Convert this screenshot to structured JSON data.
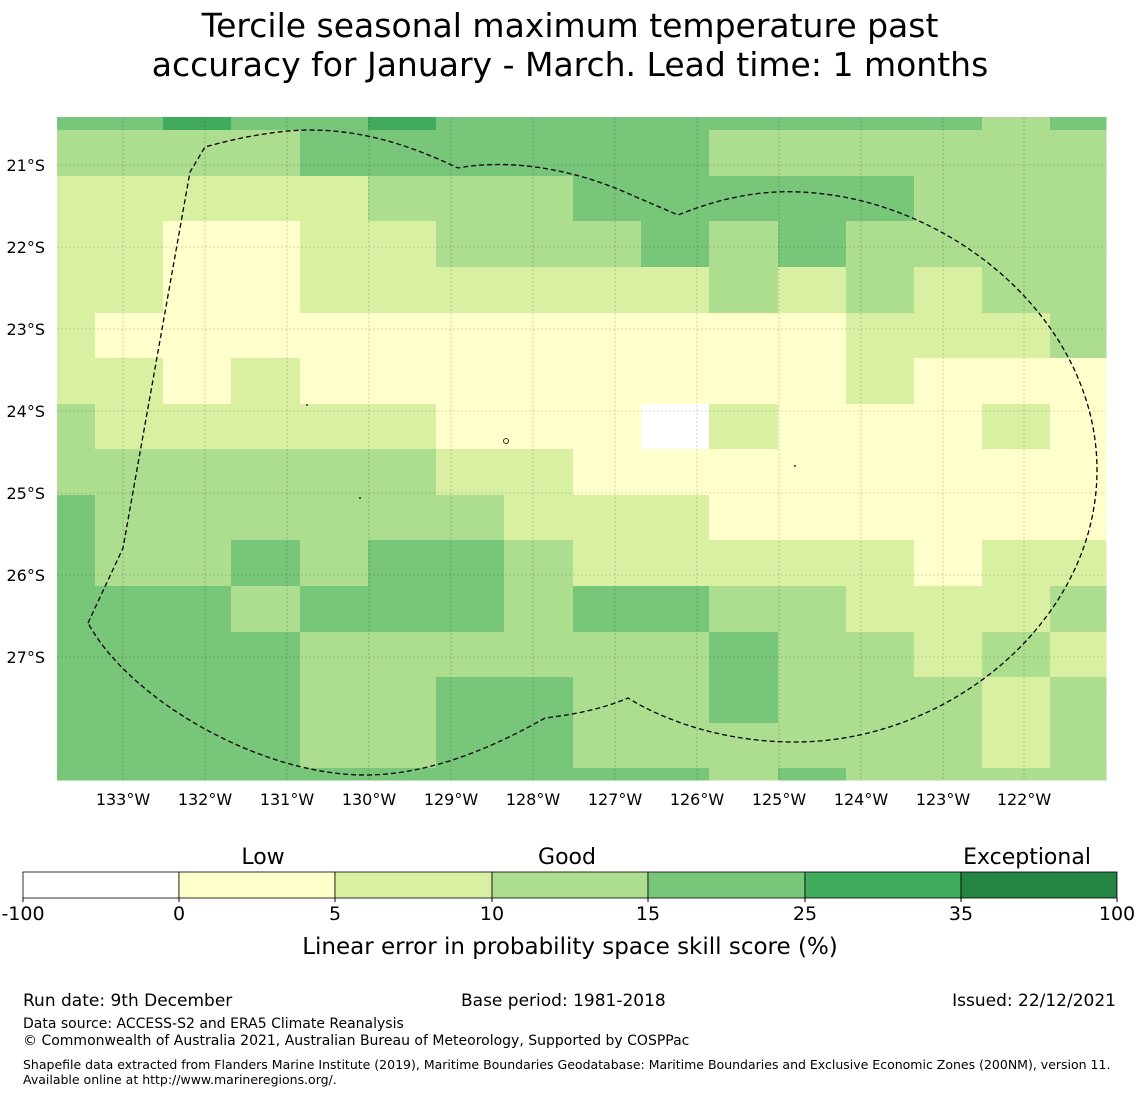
{
  "title": {
    "line1": "Tercile seasonal maximum temperature past",
    "line2": "accuracy for January - March. Lead time: 1 months"
  },
  "map": {
    "lat_labels": [
      "21°S",
      "22°S",
      "23°S",
      "24°S",
      "25°S",
      "26°S",
      "27°S"
    ],
    "lon_labels": [
      "133°W",
      "132°W",
      "131°W",
      "130°W",
      "129°W",
      "128°W",
      "127°W",
      "126°W",
      "125°W",
      "124°W",
      "123°W",
      "122°W"
    ],
    "legend_colors": [
      "#ffffff",
      "#ffffcc",
      "#d9f0a3",
      "#addd8e",
      "#78c679",
      "#41ab5d",
      "#238443"
    ],
    "grid_rows": [
      [
        4,
        4,
        5,
        4,
        4,
        5,
        4,
        4,
        4,
        4,
        4,
        4,
        4,
        4,
        3,
        4
      ],
      [
        3,
        3,
        3,
        3,
        4,
        4,
        4,
        4,
        4,
        4,
        3,
        3,
        3,
        3,
        3,
        3
      ],
      [
        2,
        2,
        2,
        2,
        2,
        3,
        3,
        3,
        4,
        4,
        4,
        4,
        4,
        3,
        3,
        3
      ],
      [
        2,
        2,
        1,
        1,
        2,
        2,
        3,
        3,
        3,
        4,
        3,
        4,
        3,
        3,
        3,
        3
      ],
      [
        2,
        2,
        1,
        1,
        2,
        2,
        2,
        2,
        2,
        2,
        3,
        2,
        3,
        2,
        3,
        3
      ],
      [
        2,
        1,
        1,
        1,
        1,
        1,
        1,
        1,
        1,
        1,
        1,
        1,
        2,
        2,
        2,
        3
      ],
      [
        2,
        2,
        1,
        2,
        1,
        1,
        1,
        1,
        1,
        1,
        1,
        1,
        2,
        1,
        1,
        1
      ],
      [
        3,
        2,
        2,
        2,
        2,
        2,
        1,
        1,
        1,
        0,
        2,
        1,
        1,
        1,
        2,
        1
      ],
      [
        3,
        3,
        3,
        3,
        3,
        3,
        2,
        2,
        1,
        1,
        1,
        1,
        1,
        1,
        1,
        1
      ],
      [
        4,
        3,
        3,
        3,
        3,
        3,
        3,
        2,
        2,
        2,
        1,
        1,
        1,
        1,
        1,
        1
      ],
      [
        4,
        3,
        3,
        4,
        3,
        4,
        4,
        3,
        2,
        2,
        2,
        2,
        2,
        1,
        2,
        2
      ],
      [
        4,
        4,
        4,
        3,
        4,
        4,
        4,
        3,
        4,
        4,
        3,
        3,
        2,
        2,
        2,
        3
      ],
      [
        4,
        4,
        4,
        4,
        3,
        3,
        3,
        3,
        3,
        3,
        4,
        3,
        3,
        2,
        3,
        2
      ],
      [
        4,
        4,
        4,
        4,
        3,
        3,
        4,
        4,
        3,
        3,
        4,
        3,
        3,
        3,
        2,
        3
      ],
      [
        4,
        4,
        4,
        4,
        3,
        3,
        4,
        4,
        3,
        3,
        3,
        3,
        3,
        3,
        2,
        3
      ],
      [
        4,
        4,
        4,
        4,
        4,
        4,
        4,
        4,
        4,
        4,
        3,
        4,
        3,
        3,
        3,
        3
      ]
    ]
  },
  "colorbar": {
    "category_labels": [
      "Low",
      "Good",
      "Exceptional"
    ],
    "ticks": [
      "-100",
      "0",
      "5",
      "10",
      "15",
      "25",
      "35",
      "100"
    ],
    "xlabel": "Linear error in probability space skill score (%)"
  },
  "footer": {
    "run_date": "Run date: 9th December",
    "base_period": "Base period: 1981-2018",
    "issued": "Issued: 22/12/2021",
    "data_source": "Data source: ACCESS-S2 and ERA5 Climate Reanalysis",
    "copyright": "© Commonwealth of Australia 2021, Australian Bureau of Meteorology, Supported by COSPPac",
    "shapefile": "Shapefile data extracted from Flanders Marine Institute (2019), Maritime Boundaries Geodatabase: Maritime Boundaries and Exclusive Economic Zones (200NM), version 11. Available online at http://www.marineregions.org/."
  }
}
